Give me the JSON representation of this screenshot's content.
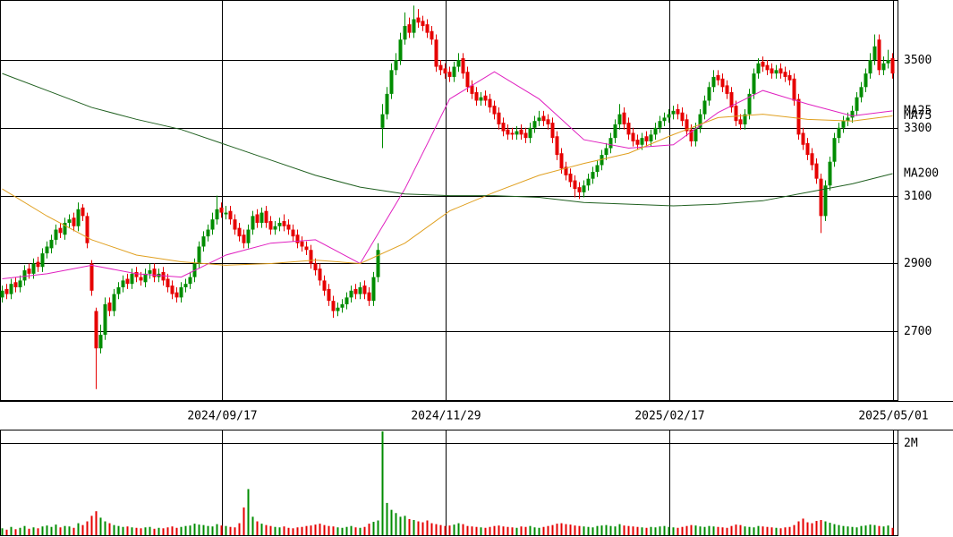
{
  "chart_data": {
    "type": "candlestick",
    "categories": [
      null,
      null,
      null,
      null,
      null,
      null,
      null,
      null,
      null,
      null,
      null,
      null,
      null,
      null,
      null,
      null,
      null,
      null,
      null,
      null,
      null,
      null,
      null,
      null,
      null,
      null,
      null,
      null,
      null,
      null,
      null,
      null,
      null,
      null,
      null,
      null,
      null,
      null,
      null,
      null,
      null,
      null,
      null,
      null,
      null,
      null,
      null,
      null,
      null,
      "2024/09/17",
      null,
      null,
      null,
      null,
      null,
      null,
      null,
      null,
      null,
      null,
      null,
      null,
      null,
      null,
      null,
      null,
      null,
      null,
      null,
      null,
      null,
      null,
      null,
      null,
      null,
      null,
      null,
      null,
      null,
      null,
      null,
      null,
      null,
      null,
      null,
      null,
      null,
      null,
      null,
      null,
      null,
      null,
      null,
      null,
      null,
      null,
      null,
      null,
      null,
      "2024/11/29",
      null,
      null,
      null,
      null,
      null,
      null,
      null,
      null,
      null,
      null,
      null,
      null,
      null,
      null,
      null,
      null,
      null,
      null,
      null,
      null,
      null,
      null,
      null,
      null,
      null,
      null,
      null,
      null,
      null,
      null,
      null,
      null,
      null,
      null,
      null,
      null,
      null,
      null,
      null,
      null,
      null,
      null,
      null,
      null,
      null,
      null,
      null,
      null,
      null,
      "2025/02/17",
      null,
      null,
      null,
      null,
      null,
      null,
      null,
      null,
      null,
      null,
      null,
      null,
      null,
      null,
      null,
      null,
      null,
      null,
      null,
      null,
      null,
      null,
      null,
      null,
      null,
      null,
      null,
      null,
      null,
      null,
      null,
      null,
      null,
      null,
      null,
      null,
      null,
      null,
      null,
      null,
      null,
      null,
      null,
      null,
      null,
      null,
      null,
      null,
      null,
      "2025/05/01"
    ],
    "open": [
      2800,
      2825,
      2810,
      2845,
      2830,
      2850,
      2885,
      2870,
      2905,
      2890,
      2930,
      2945,
      2970,
      3005,
      2985,
      3020,
      3035,
      3010,
      3065,
      3040,
      2900,
      2760,
      2650,
      2690,
      2785,
      2760,
      2810,
      2830,
      2855,
      2840,
      2875,
      2860,
      2845,
      2870,
      2885,
      2860,
      2875,
      2855,
      2835,
      2815,
      2800,
      2830,
      2840,
      2860,
      2900,
      2950,
      2980,
      3000,
      3030,
      3065,
      3045,
      3055,
      3030,
      3005,
      2985,
      2960,
      3000,
      3045,
      3020,
      3055,
      3025,
      3000,
      3010,
      3025,
      3015,
      3000,
      2985,
      2965,
      2950,
      2940,
      2900,
      2885,
      2850,
      2825,
      2790,
      2760,
      2770,
      2780,
      2800,
      2825,
      2810,
      2835,
      2815,
      2790,
      2860,
      3300,
      3340,
      3400,
      3470,
      3500,
      3560,
      3605,
      3580,
      3625,
      3615,
      3605,
      3585,
      3560,
      3485,
      3475,
      3465,
      3450,
      3480,
      3505,
      3465,
      3425,
      3405,
      3380,
      3395,
      3385,
      3365,
      3345,
      3315,
      3295,
      3285,
      3280,
      3295,
      3285,
      3270,
      3300,
      3320,
      3335,
      3325,
      3315,
      3275,
      3225,
      3185,
      3165,
      3145,
      3125,
      3110,
      3130,
      3150,
      3170,
      3190,
      3220,
      3240,
      3270,
      3310,
      3345,
      3315,
      3285,
      3265,
      3250,
      3275,
      3260,
      3280,
      3300,
      3320,
      3330,
      3340,
      3355,
      3345,
      3325,
      3295,
      3260,
      3300,
      3340,
      3380,
      3420,
      3455,
      3445,
      3425,
      3405,
      3365,
      3325,
      3310,
      3340,
      3400,
      3460,
      3495,
      3485,
      3475,
      3460,
      3475,
      3465,
      3455,
      3445,
      3385,
      3285,
      3255,
      3225,
      3195,
      3150,
      3040,
      3130,
      3200,
      3270,
      3300,
      3320,
      3330,
      3350,
      3390,
      3420,
      3460,
      3500,
      3560,
      3470,
      3490,
      3505
    ],
    "high": [
      2835,
      2840,
      2855,
      2860,
      2865,
      2895,
      2900,
      2915,
      2920,
      2945,
      2965,
      2985,
      3015,
      3020,
      3035,
      3045,
      3050,
      3080,
      3075,
      3050,
      2910,
      2770,
      2720,
      2800,
      2800,
      2825,
      2845,
      2865,
      2870,
      2885,
      2890,
      2875,
      2885,
      2900,
      2900,
      2885,
      2890,
      2870,
      2850,
      2830,
      2845,
      2855,
      2875,
      2915,
      2965,
      2995,
      3015,
      3050,
      3100,
      3080,
      3070,
      3070,
      3045,
      3020,
      3000,
      3015,
      3055,
      3060,
      3065,
      3070,
      3040,
      3025,
      3035,
      3045,
      3030,
      3015,
      3000,
      2980,
      2965,
      2955,
      2915,
      2900,
      2865,
      2840,
      2805,
      2785,
      2795,
      2815,
      2835,
      2840,
      2845,
      2850,
      2830,
      2875,
      2960,
      3370,
      3420,
      3490,
      3520,
      3580,
      3640,
      3625,
      3660,
      3650,
      3630,
      3620,
      3600,
      3575,
      3500,
      3490,
      3480,
      3495,
      3520,
      3520,
      3480,
      3440,
      3420,
      3405,
      3410,
      3400,
      3380,
      3360,
      3330,
      3310,
      3300,
      3305,
      3310,
      3300,
      3315,
      3335,
      3350,
      3350,
      3340,
      3330,
      3290,
      3240,
      3200,
      3180,
      3160,
      3140,
      3145,
      3165,
      3185,
      3205,
      3235,
      3255,
      3285,
      3325,
      3370,
      3360,
      3330,
      3300,
      3280,
      3285,
      3290,
      3295,
      3315,
      3335,
      3345,
      3355,
      3365,
      3370,
      3360,
      3340,
      3310,
      3315,
      3355,
      3395,
      3435,
      3470,
      3470,
      3460,
      3440,
      3420,
      3380,
      3340,
      3355,
      3415,
      3475,
      3505,
      3510,
      3500,
      3490,
      3485,
      3490,
      3480,
      3470,
      3460,
      3400,
      3300,
      3270,
      3240,
      3210,
      3165,
      3145,
      3215,
      3285,
      3315,
      3335,
      3345,
      3365,
      3405,
      3435,
      3475,
      3520,
      3575,
      3575,
      3510,
      3530,
      3520
    ],
    "low": [
      2785,
      2795,
      2795,
      2815,
      2815,
      2835,
      2855,
      2855,
      2875,
      2875,
      2915,
      2930,
      2955,
      2975,
      2970,
      3005,
      2995,
      2995,
      3025,
      2945,
      2805,
      2530,
      2635,
      2675,
      2745,
      2745,
      2795,
      2815,
      2825,
      2825,
      2845,
      2835,
      2830,
      2855,
      2845,
      2845,
      2835,
      2815,
      2795,
      2785,
      2785,
      2815,
      2825,
      2845,
      2885,
      2935,
      2965,
      2985,
      3015,
      3035,
      3030,
      3015,
      2985,
      2965,
      2945,
      2945,
      2985,
      3005,
      3005,
      3005,
      2985,
      2985,
      2995,
      2995,
      2985,
      2965,
      2945,
      2935,
      2925,
      2885,
      2865,
      2835,
      2805,
      2775,
      2740,
      2745,
      2755,
      2765,
      2785,
      2795,
      2795,
      2795,
      2775,
      2775,
      2845,
      3240,
      3325,
      3385,
      3455,
      3485,
      3545,
      3565,
      3565,
      3595,
      3585,
      3565,
      3545,
      3465,
      3455,
      3445,
      3435,
      3435,
      3465,
      3445,
      3405,
      3385,
      3365,
      3365,
      3365,
      3345,
      3325,
      3295,
      3275,
      3265,
      3265,
      3265,
      3265,
      3255,
      3255,
      3285,
      3305,
      3305,
      3295,
      3255,
      3205,
      3165,
      3145,
      3125,
      3095,
      3090,
      3095,
      3115,
      3135,
      3155,
      3175,
      3205,
      3225,
      3255,
      3295,
      3295,
      3265,
      3245,
      3235,
      3235,
      3245,
      3245,
      3265,
      3285,
      3305,
      3315,
      3325,
      3325,
      3305,
      3275,
      3245,
      3245,
      3285,
      3325,
      3365,
      3405,
      3425,
      3405,
      3385,
      3345,
      3305,
      3295,
      3295,
      3325,
      3385,
      3445,
      3465,
      3455,
      3445,
      3445,
      3445,
      3435,
      3425,
      3365,
      3265,
      3235,
      3205,
      3175,
      3135,
      2990,
      3025,
      3115,
      3185,
      3255,
      3285,
      3305,
      3315,
      3335,
      3375,
      3405,
      3445,
      3485,
      3455,
      3455,
      3475,
      3445
    ],
    "close": [
      2820,
      2810,
      2840,
      2830,
      2850,
      2880,
      2870,
      2900,
      2890,
      2930,
      2950,
      2970,
      3000,
      2990,
      3020,
      3030,
      3010,
      3060,
      3040,
      2960,
      2820,
      2650,
      2690,
      2780,
      2760,
      2810,
      2830,
      2850,
      2840,
      2870,
      2860,
      2850,
      2870,
      2880,
      2860,
      2870,
      2850,
      2830,
      2810,
      2800,
      2830,
      2840,
      2860,
      2900,
      2950,
      2980,
      3000,
      3030,
      3060,
      3050,
      3050,
      3030,
      3000,
      2980,
      2960,
      3000,
      3040,
      3020,
      3050,
      3020,
      3000,
      3010,
      3020,
      3010,
      3000,
      2980,
      2960,
      2950,
      2940,
      2900,
      2880,
      2850,
      2820,
      2790,
      2760,
      2770,
      2780,
      2800,
      2820,
      2810,
      2830,
      2810,
      2790,
      2860,
      2940,
      3340,
      3400,
      3470,
      3500,
      3560,
      3600,
      3580,
      3620,
      3610,
      3600,
      3580,
      3560,
      3480,
      3470,
      3460,
      3450,
      3480,
      3500,
      3460,
      3420,
      3400,
      3380,
      3390,
      3380,
      3360,
      3340,
      3310,
      3290,
      3280,
      3280,
      3290,
      3280,
      3270,
      3300,
      3320,
      3330,
      3320,
      3310,
      3270,
      3220,
      3180,
      3160,
      3140,
      3120,
      3110,
      3130,
      3150,
      3170,
      3190,
      3220,
      3240,
      3270,
      3310,
      3340,
      3310,
      3280,
      3260,
      3250,
      3270,
      3260,
      3280,
      3300,
      3320,
      3330,
      3340,
      3350,
      3340,
      3320,
      3290,
      3260,
      3300,
      3340,
      3380,
      3420,
      3450,
      3440,
      3420,
      3400,
      3360,
      3320,
      3310,
      3340,
      3400,
      3460,
      3490,
      3480,
      3470,
      3460,
      3470,
      3460,
      3450,
      3440,
      3380,
      3280,
      3250,
      3220,
      3190,
      3150,
      3040,
      3130,
      3200,
      3270,
      3300,
      3320,
      3330,
      3350,
      3390,
      3420,
      3460,
      3500,
      3540,
      3470,
      3490,
      3500,
      3460
    ],
    "up_color": "#008c00",
    "down_color": "#e60000",
    "ylim": [
      2495,
      3674
    ],
    "yticks": [
      2700,
      2900,
      3100,
      3300,
      3500
    ],
    "moving_averages": [
      {
        "name": "MA25",
        "color": "#e020c0",
        "x": [
          0,
          10,
          20,
          30,
          40,
          50,
          60,
          70,
          80,
          90,
          100,
          110,
          120,
          130,
          140,
          150,
          160,
          170,
          180,
          190,
          199
        ],
        "values": [
          2855,
          2870,
          2895,
          2870,
          2860,
          2925,
          2960,
          2970,
          2900,
          3120,
          3385,
          3465,
          3385,
          3265,
          3240,
          3250,
          3345,
          3410,
          3370,
          3335,
          3350
        ]
      },
      {
        "name": "MA75",
        "color": "#e0a020",
        "x": [
          0,
          10,
          20,
          30,
          40,
          50,
          60,
          70,
          80,
          90,
          100,
          110,
          120,
          130,
          140,
          150,
          160,
          170,
          180,
          190,
          199
        ],
        "values": [
          3120,
          3040,
          2970,
          2925,
          2905,
          2895,
          2900,
          2910,
          2900,
          2960,
          3055,
          3110,
          3160,
          3195,
          3225,
          3280,
          3330,
          3340,
          3325,
          3320,
          3335
        ]
      },
      {
        "name": "MA200",
        "color": "#206020",
        "x": [
          0,
          10,
          20,
          30,
          40,
          50,
          60,
          70,
          80,
          90,
          100,
          110,
          120,
          130,
          140,
          150,
          160,
          170,
          180,
          190,
          199
        ],
        "values": [
          3460,
          3410,
          3360,
          3325,
          3295,
          3250,
          3205,
          3160,
          3125,
          3105,
          3100,
          3100,
          3095,
          3080,
          3075,
          3070,
          3075,
          3085,
          3110,
          3135,
          3165
        ]
      }
    ],
    "volume": {
      "values": [
        150000,
        120000,
        180000,
        130000,
        160000,
        200000,
        140000,
        170000,
        150000,
        190000,
        210000,
        180000,
        230000,
        170000,
        200000,
        190000,
        160000,
        260000,
        220000,
        300000,
        420000,
        520000,
        380000,
        300000,
        260000,
        220000,
        200000,
        180000,
        190000,
        170000,
        160000,
        150000,
        170000,
        180000,
        140000,
        160000,
        150000,
        170000,
        190000,
        160000,
        180000,
        200000,
        210000,
        250000,
        230000,
        220000,
        200000,
        190000,
        240000,
        210000,
        200000,
        180000,
        170000,
        260000,
        600000,
        1000000,
        400000,
        300000,
        250000,
        220000,
        200000,
        180000,
        170000,
        190000,
        160000,
        150000,
        170000,
        180000,
        200000,
        210000,
        230000,
        250000,
        220000,
        200000,
        190000,
        170000,
        160000,
        180000,
        200000,
        170000,
        160000,
        180000,
        250000,
        290000,
        320000,
        2250000,
        700000,
        550000,
        480000,
        400000,
        420000,
        350000,
        330000,
        300000,
        280000,
        320000,
        260000,
        240000,
        220000,
        200000,
        210000,
        230000,
        260000,
        240000,
        200000,
        190000,
        180000,
        170000,
        160000,
        180000,
        200000,
        210000,
        190000,
        180000,
        170000,
        160000,
        190000,
        180000,
        200000,
        170000,
        160000,
        180000,
        200000,
        220000,
        250000,
        260000,
        240000,
        230000,
        210000,
        200000,
        190000,
        180000,
        170000,
        200000,
        210000,
        220000,
        200000,
        190000,
        240000,
        210000,
        200000,
        190000,
        180000,
        170000,
        160000,
        180000,
        170000,
        190000,
        200000,
        180000,
        170000,
        160000,
        180000,
        200000,
        220000,
        210000,
        190000,
        180000,
        200000,
        190000,
        180000,
        170000,
        160000,
        200000,
        230000,
        220000,
        190000,
        180000,
        170000,
        200000,
        190000,
        180000,
        170000,
        160000,
        150000,
        170000,
        180000,
        220000,
        300000,
        360000,
        280000,
        260000,
        310000,
        330000,
        300000,
        270000,
        240000,
        220000,
        200000,
        190000,
        180000,
        170000,
        200000,
        210000,
        230000,
        220000,
        200000,
        190000,
        210000,
        160000
      ],
      "ylim": [
        0,
        2270000
      ],
      "yticks": [
        {
          "value": 2000000,
          "label": "2M"
        }
      ]
    }
  }
}
